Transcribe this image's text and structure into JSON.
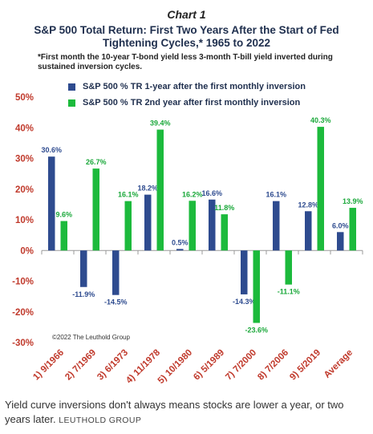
{
  "chart_label": "Chart 1",
  "title": "S&P 500 Total Return: First Two Years After the Start of Fed Tightening Cycles,* 1965 to 2022",
  "footnote": "*First month the 10-year T-bond yield less 3-month T-bill yield inverted during sustained inversion cycles.",
  "copyright": "©2022 The Leuthold Group",
  "caption": {
    "text": "Yield curve inversions don't always means stocks are lower a year, or two years later.",
    "source": "LEUTHOLD GROUP"
  },
  "colors": {
    "series1": "#2e4b8f",
    "series2": "#1cba3c",
    "label1": "#2e4b8f",
    "label2": "#1aa83a",
    "axis_text": "#c0392b",
    "gridline": "#999999"
  },
  "chart_data": {
    "type": "bar",
    "categories": [
      "1) 9/1966",
      "2) 7/1969",
      "3) 6/1973",
      "4) 11/1978",
      "5) 10/1980",
      "6) 5/1989",
      "7) 7/2000",
      "8) 7/2006",
      "9) 5/2019",
      "Average"
    ],
    "series": [
      {
        "name": "S&P 500 % TR 1-year after the first monthly inversion",
        "values": [
          30.6,
          -11.9,
          -14.5,
          18.2,
          0.5,
          16.6,
          -14.3,
          16.1,
          12.8,
          6.0
        ],
        "labels": [
          "30.6%",
          "-11.9%",
          "-14.5%",
          "18.2%",
          "0.5%",
          "16.6%",
          "-14.3%",
          "16.1%",
          "12.8%",
          "6.0%"
        ]
      },
      {
        "name": "S&P 500 % TR 2nd year after first monthly inversion",
        "values": [
          9.6,
          26.7,
          16.1,
          39.4,
          16.2,
          11.8,
          -23.6,
          -11.1,
          40.3,
          13.9
        ],
        "labels": [
          "9.6%",
          "26.7%",
          "16.1%",
          "39.4%",
          "16.2%",
          "11.8%",
          "-23.6%",
          "-11.1%",
          "40.3%",
          "13.9%"
        ]
      }
    ],
    "yticks": [
      50,
      40,
      30,
      20,
      10,
      0,
      -10,
      -20,
      -30
    ],
    "ytick_labels": [
      "50%",
      "40%",
      "30%",
      "20%",
      "10%",
      "0%",
      "-10%",
      "-20%",
      "-30%"
    ],
    "ylim": [
      -30,
      50
    ],
    "legend_position": "top-left",
    "grid": false
  }
}
